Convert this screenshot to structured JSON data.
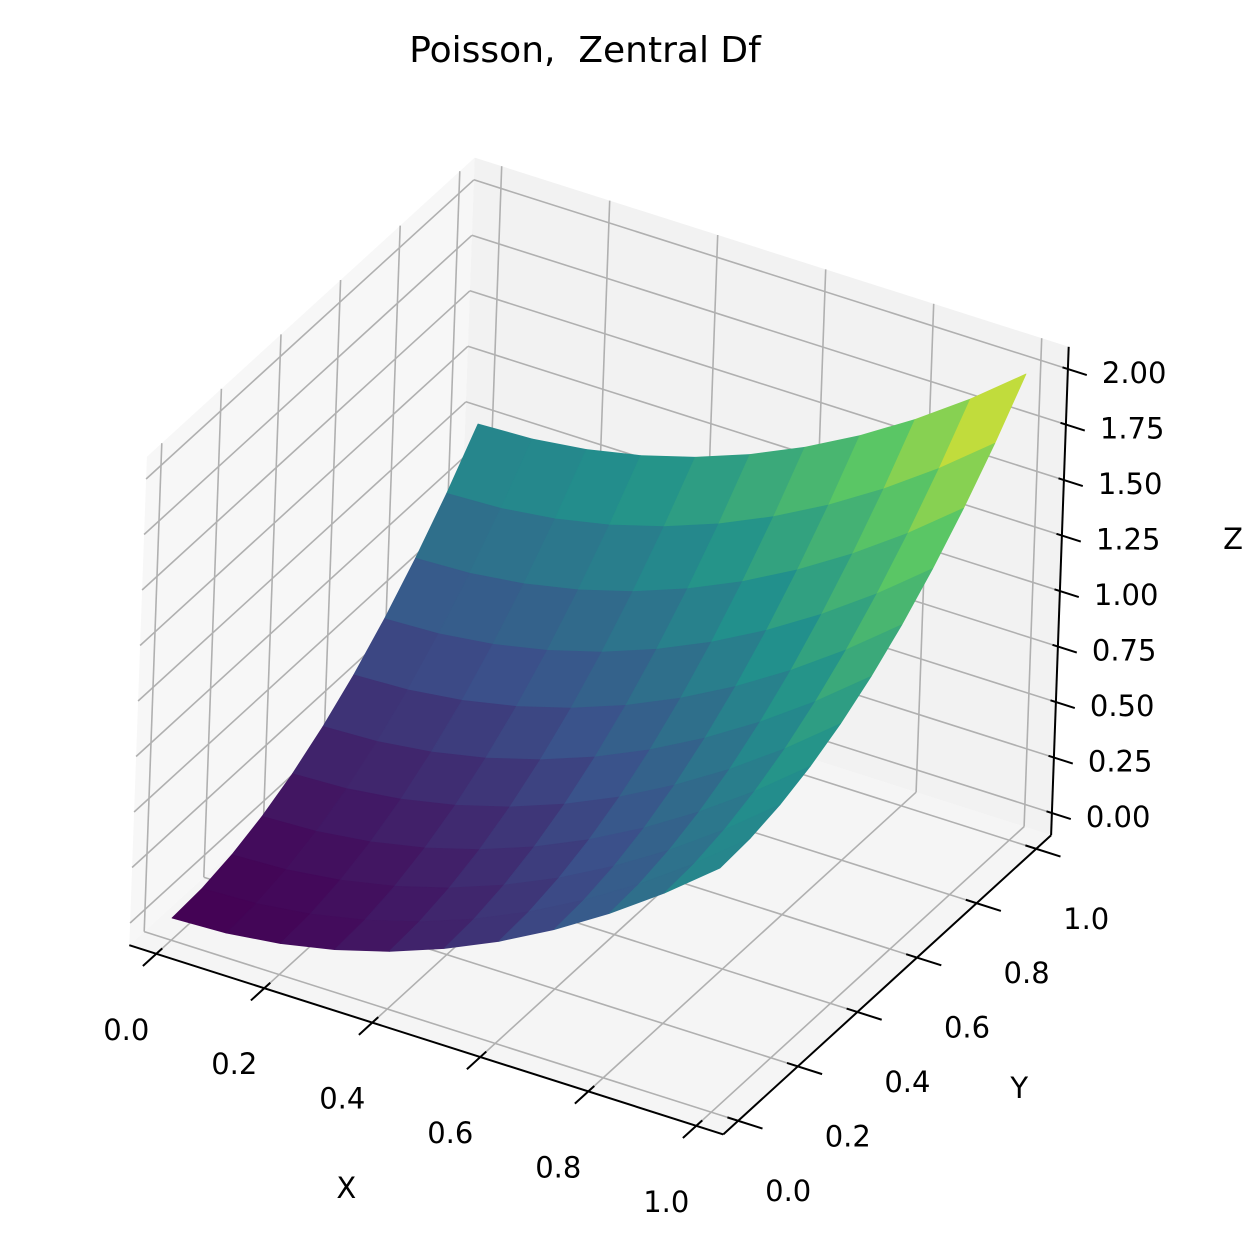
{
  "chart_data": {
    "type": "surface3d",
    "title": "Poisson,  Zentral Df",
    "xlabel": "X",
    "ylabel": "Y",
    "zlabel": "Z",
    "x": [
      0,
      0.1,
      0.2,
      0.3,
      0.4,
      0.5,
      0.6,
      0.7,
      0.8,
      0.9,
      1
    ],
    "y": [
      0,
      0.1,
      0.2,
      0.3,
      0.4,
      0.5,
      0.6,
      0.7,
      0.8,
      0.9,
      1
    ],
    "z": [
      [
        0,
        0.01,
        0.04,
        0.09,
        0.16,
        0.25,
        0.36,
        0.49,
        0.64,
        0.81,
        1
      ],
      [
        0.01,
        0.02,
        0.05,
        0.1,
        0.17,
        0.26,
        0.37,
        0.5,
        0.65,
        0.82,
        1.01
      ],
      [
        0.04,
        0.05,
        0.08,
        0.13,
        0.2,
        0.29,
        0.4,
        0.53,
        0.68,
        0.85,
        1.04
      ],
      [
        0.09,
        0.1,
        0.13,
        0.18,
        0.25,
        0.34,
        0.45,
        0.58,
        0.73,
        0.9,
        1.09
      ],
      [
        0.16,
        0.17,
        0.2,
        0.25,
        0.32,
        0.41,
        0.52,
        0.65,
        0.8,
        0.97,
        1.16
      ],
      [
        0.25,
        0.26,
        0.29,
        0.34,
        0.41,
        0.5,
        0.61,
        0.74,
        0.89,
        1.06,
        1.25
      ],
      [
        0.36,
        0.37,
        0.4,
        0.45,
        0.52,
        0.61,
        0.72,
        0.85,
        1,
        1.17,
        1.36
      ],
      [
        0.49,
        0.5,
        0.53,
        0.58,
        0.65,
        0.74,
        0.85,
        0.98,
        1.13,
        1.3,
        1.49
      ],
      [
        0.64,
        0.65,
        0.68,
        0.73,
        0.8,
        0.89,
        1,
        1.13,
        1.28,
        1.45,
        1.64
      ],
      [
        0.81,
        0.82,
        0.85,
        0.9,
        0.97,
        1.06,
        1.17,
        1.3,
        1.45,
        1.62,
        1.81
      ],
      [
        1,
        1.01,
        1.04,
        1.09,
        1.16,
        1.25,
        1.36,
        1.49,
        1.64,
        1.81,
        2
      ]
    ],
    "colormap": "viridis",
    "xlim": [
      0,
      1
    ],
    "ylim": [
      0,
      1
    ],
    "zlim": [
      0,
      2
    ],
    "xticks": [
      {
        "value": 0,
        "label": "0.0"
      },
      {
        "value": 0.2,
        "label": "0.2"
      },
      {
        "value": 0.4,
        "label": "0.4"
      },
      {
        "value": 0.6,
        "label": "0.6"
      },
      {
        "value": 0.8,
        "label": "0.8"
      },
      {
        "value": 1,
        "label": "1.0"
      }
    ],
    "yticks": [
      {
        "value": 0,
        "label": "0.0"
      },
      {
        "value": 0.2,
        "label": "0.2"
      },
      {
        "value": 0.4,
        "label": "0.4"
      },
      {
        "value": 0.6,
        "label": "0.6"
      },
      {
        "value": 0.8,
        "label": "0.8"
      },
      {
        "value": 1,
        "label": "1.0"
      }
    ],
    "zticks": [
      {
        "value": 0,
        "label": "0.00"
      },
      {
        "value": 0.25,
        "label": "0.25"
      },
      {
        "value": 0.5,
        "label": "0.50"
      },
      {
        "value": 0.75,
        "label": "0.75"
      },
      {
        "value": 1,
        "label": "1.00"
      },
      {
        "value": 1.25,
        "label": "1.25"
      },
      {
        "value": 1.5,
        "label": "1.50"
      },
      {
        "value": 1.75,
        "label": "1.75"
      },
      {
        "value": 2,
        "label": "2.00"
      }
    ],
    "grid": true
  }
}
